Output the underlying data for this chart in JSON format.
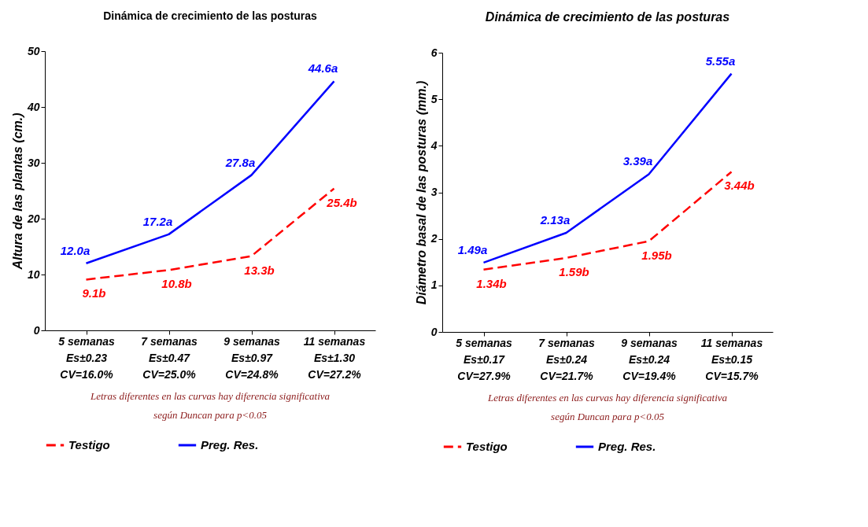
{
  "chart_data": [
    {
      "type": "line",
      "title": "Dinámica de crecimiento de las posturas",
      "ylabel": "Altura de las plantas (cm.)",
      "categories": [
        "5 semanas\nEs±0.23\nCV=16.0%",
        "7 semanas\nEs±0.47\nCV=25.0%",
        "9 semanas\nEs±0.97\nCV=24.8%",
        "11 semanas\nEs±1.30\nCV=27.2%"
      ],
      "ylim": [
        0,
        50
      ],
      "yticks": [
        0,
        10,
        20,
        30,
        40,
        50
      ],
      "grid": false,
      "legend": "bottom",
      "annotations": [
        "Letras diferentes en las curvas hay diferencia significativa\nsegún Duncan para p<0.05"
      ],
      "series": [
        {
          "name": "Testigo",
          "color": "#ff0000",
          "line_style": "dashed",
          "values": [
            9.1,
            10.8,
            13.3,
            25.4
          ],
          "value_labels": [
            "9.1b",
            "10.8b",
            "13.3b",
            "25.4b"
          ]
        },
        {
          "name": "Preg. Res.",
          "color": "#0000ff",
          "line_style": "solid",
          "values": [
            12.0,
            17.2,
            27.8,
            44.6
          ],
          "value_labels": [
            "12.0a",
            "17.2a",
            "27.8a",
            "44.6a"
          ]
        }
      ]
    },
    {
      "type": "line",
      "title": "Dinámica de crecimiento de las posturas",
      "ylabel": "Diámetro basal de las posturas (mm.)",
      "categories": [
        "5 semanas\nEs±0.17\nCV=27.9%",
        "7 semanas\nEs±0.24\nCV=21.7%",
        "9 semanas\nEs±0.24\nCV=19.4%",
        "11 semanas\nEs±0.15\nCV=15.7%"
      ],
      "ylim": [
        0,
        6
      ],
      "yticks": [
        0,
        1,
        2,
        3,
        4,
        5,
        6
      ],
      "grid": false,
      "legend": "bottom",
      "annotations": [
        "Letras diferentes en las curvas hay diferencia significativa\nsegún Duncan para p<0.05"
      ],
      "series": [
        {
          "name": "Testigo",
          "color": "#ff0000",
          "line_style": "dashed",
          "values": [
            1.34,
            1.59,
            1.95,
            3.44
          ],
          "value_labels": [
            "1.34b",
            "1.59b",
            "1.95b",
            "3.44b"
          ]
        },
        {
          "name": "Preg. Res.",
          "color": "#0000ff",
          "line_style": "solid",
          "values": [
            1.49,
            2.13,
            3.39,
            5.55
          ],
          "value_labels": [
            "1.49a",
            "2.13a",
            "3.39a",
            "5.55a"
          ]
        }
      ]
    }
  ]
}
